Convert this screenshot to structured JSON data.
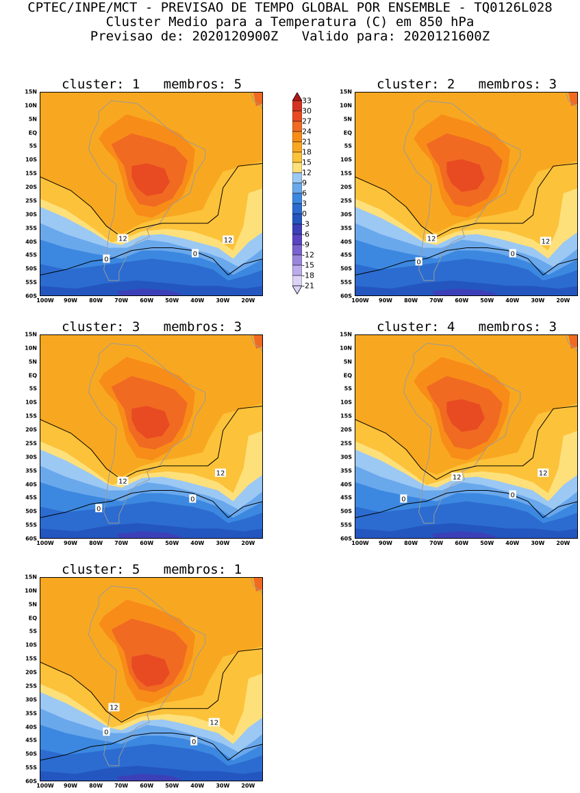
{
  "header": {
    "line1": "CPTEC/INPE/MCT - PREVISAO DE TEMPO GLOBAL POR ENSEMBLE - TQ0126L028",
    "line2": "Cluster Medio para a Temperatura (C) em 850 hPa",
    "line3": "Previsao de: 2020120900Z   Valido para: 2020121600Z"
  },
  "axes": {
    "lat_labels": [
      "15N",
      "10N",
      "5N",
      "EQ",
      "5S",
      "10S",
      "15S",
      "20S",
      "25S",
      "30S",
      "35S",
      "40S",
      "45S",
      "50S",
      "55S",
      "60S"
    ],
    "lon_labels": [
      "100W",
      "90W",
      "80W",
      "70W",
      "60W",
      "50W",
      "40W",
      "30W",
      "20W"
    ]
  },
  "colorbar": {
    "levels": [
      "33",
      "30",
      "27",
      "24",
      "21",
      "18",
      "15",
      "12",
      "9",
      "6",
      "3",
      "0",
      "-3",
      "-6",
      "-9",
      "-12",
      "-15",
      "-18",
      "-21"
    ],
    "colors": [
      "#b41818",
      "#d43222",
      "#e84a22",
      "#f06a22",
      "#f88c18",
      "#f8a820",
      "#fcc23a",
      "#fde07a",
      "#9cc8f4",
      "#6aa8ec",
      "#3c88e0",
      "#2c6cd0",
      "#2456c0",
      "#3c40b8",
      "#5a44c4",
      "#7a62d0",
      "#9a86dc",
      "#bcacea",
      "#dcd2f6"
    ]
  },
  "panels": [
    {
      "title": "cluster: 1   membros: 5",
      "contours": [
        {
          "label": "12",
          "lon": -67.5,
          "lat": -38.5
        },
        {
          "label": "12",
          "lon": -26,
          "lat": -39
        },
        {
          "label": "0",
          "lon": -74,
          "lat": -46
        },
        {
          "label": "0",
          "lon": -39,
          "lat": -44
        }
      ]
    },
    {
      "title": "cluster: 2   membros: 3",
      "contours": [
        {
          "label": "12",
          "lon": -70,
          "lat": -38.5
        },
        {
          "label": "12",
          "lon": -25,
          "lat": -39.5
        },
        {
          "label": "0",
          "lon": -75,
          "lat": -47
        },
        {
          "label": "0",
          "lon": -38,
          "lat": -44
        }
      ]
    },
    {
      "title": "cluster: 3   membros: 3",
      "contours": [
        {
          "label": "12",
          "lon": -67.5,
          "lat": -38.5
        },
        {
          "label": "12",
          "lon": -29,
          "lat": -35.5
        },
        {
          "label": "0",
          "lon": -77,
          "lat": -48.5
        },
        {
          "label": "0",
          "lon": -40,
          "lat": -45
        }
      ]
    },
    {
      "title": "cluster: 4   membros: 3",
      "contours": [
        {
          "label": "12",
          "lon": -60,
          "lat": -37
        },
        {
          "label": "12",
          "lon": -26,
          "lat": -35.5
        },
        {
          "label": "0",
          "lon": -81,
          "lat": -45
        },
        {
          "label": "0",
          "lon": -38,
          "lat": -43.5
        }
      ]
    },
    {
      "title": "cluster: 5   membros: 1",
      "contours": [
        {
          "label": "12",
          "lon": -71,
          "lat": -32.5
        },
        {
          "label": "12",
          "lon": -31.5,
          "lat": -38
        },
        {
          "label": "0",
          "lon": -74,
          "lat": -41.5
        },
        {
          "label": "0",
          "lon": -39.5,
          "lat": -45
        }
      ]
    }
  ]
}
